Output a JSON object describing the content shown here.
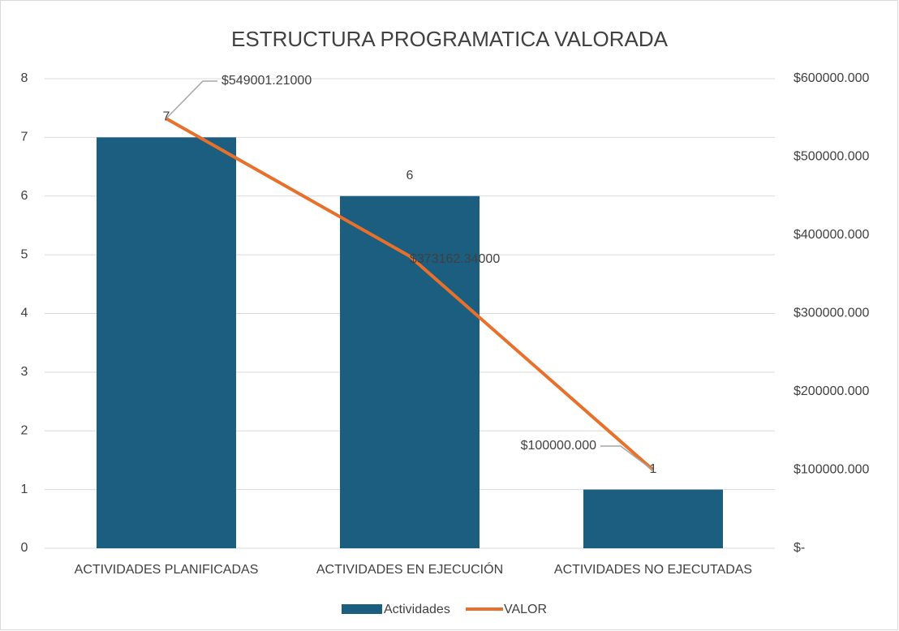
{
  "chart_data": {
    "type": "bar_line",
    "title": "ESTRUCTURA PROGRAMATICA VALORADA",
    "categories": [
      "ACTIVIDADES PLANIFICADAS",
      "ACTIVIDADES EN EJECUCIÓN",
      "ACTIVIDADES NO EJECUTADAS"
    ],
    "series": [
      {
        "name": "Actividades",
        "type": "bar",
        "color": "#1b5e80",
        "values": [
          7,
          6,
          1
        ]
      },
      {
        "name": "VALOR",
        "type": "line",
        "axis": "y2",
        "color": "#e8702a",
        "values": [
          549001.21,
          373162.34,
          100000
        ],
        "value_labels": [
          "$549001.21000",
          "$373162.34000",
          "$100000.000"
        ]
      }
    ],
    "ylim": [
      0,
      8
    ],
    "yticks": [
      0,
      1,
      2,
      3,
      4,
      5,
      6,
      7,
      8
    ],
    "y2lim": [
      0,
      600000
    ],
    "y2ticks": [
      {
        "value": 0,
        "label": "$-"
      },
      {
        "value": 100000,
        "label": "$100000.000"
      },
      {
        "value": 200000,
        "label": "$200000.000"
      },
      {
        "value": 300000,
        "label": "$300000.000"
      },
      {
        "value": 400000,
        "label": "$400000.000"
      },
      {
        "value": 500000,
        "label": "$500000.000"
      },
      {
        "value": 600000,
        "label": "$600000.000"
      }
    ],
    "grid": true,
    "legend": "bottom"
  }
}
